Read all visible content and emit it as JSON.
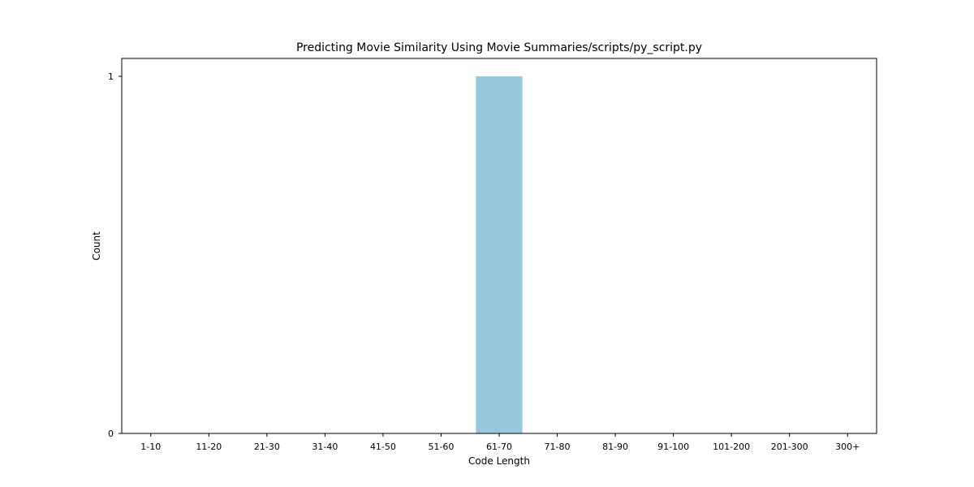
{
  "chart_data": {
    "type": "bar",
    "title": "Predicting Movie Similarity Using Movie Summaries/scripts/py_script.py",
    "xlabel": "Code Length",
    "ylabel": "Count",
    "categories": [
      "1-10",
      "11-20",
      "21-30",
      "31-40",
      "41-50",
      "51-60",
      "61-70",
      "71-80",
      "81-90",
      "91-100",
      "101-200",
      "201-300",
      "300+"
    ],
    "values": [
      0,
      0,
      0,
      0,
      0,
      0,
      1,
      0,
      0,
      0,
      0,
      0,
      0
    ],
    "ylim": [
      0,
      1.05
    ],
    "yticks": [
      0,
      1
    ],
    "bar_color": "#96c9dc",
    "grid": false,
    "legend": "none"
  }
}
